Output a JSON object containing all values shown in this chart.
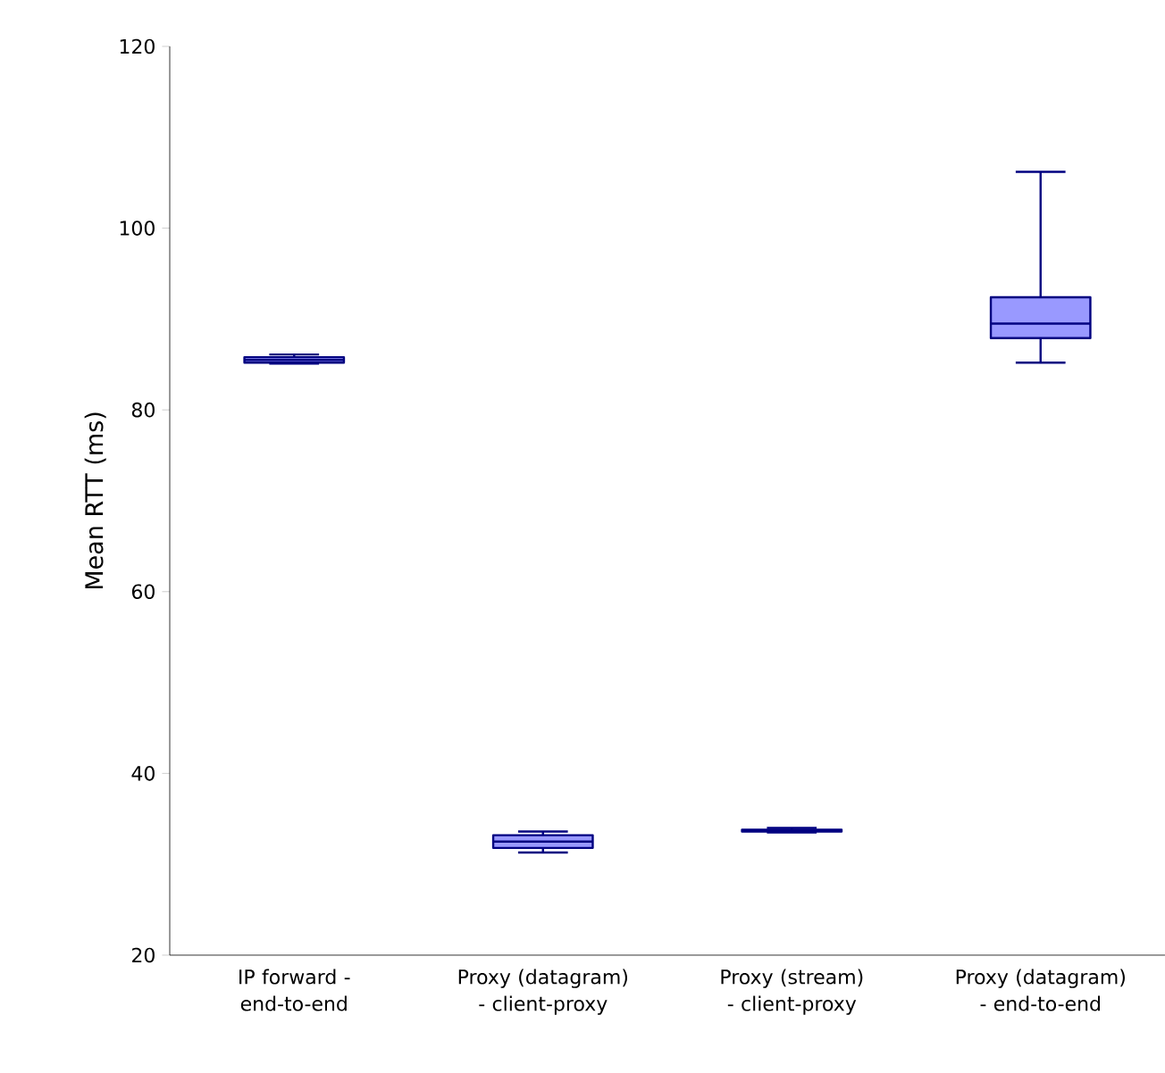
{
  "chart_data": {
    "type": "box",
    "ylabel": "Mean RTT (ms)",
    "categories": [
      "IP forward - end-to-end",
      "Proxy (datagram) - client-proxy",
      "Proxy (stream) - client-proxy",
      "Proxy (datagram) - end-to-end"
    ],
    "boxes": [
      {
        "low": 85.1,
        "q1": 85.2,
        "median": 85.5,
        "q3": 85.8,
        "high": 86.1
      },
      {
        "low": 31.3,
        "q1": 31.8,
        "median": 32.5,
        "q3": 33.2,
        "high": 33.6
      },
      {
        "low": 33.5,
        "q1": 33.6,
        "median": 33.7,
        "q3": 33.8,
        "high": 34.0
      },
      {
        "low": 85.2,
        "q1": 87.9,
        "median": 89.5,
        "q3": 92.4,
        "high": 106.2
      }
    ],
    "color": "#9999ff",
    "ylim": [
      20,
      120
    ],
    "yticks": [
      20,
      40,
      60,
      80,
      100,
      120
    ]
  }
}
